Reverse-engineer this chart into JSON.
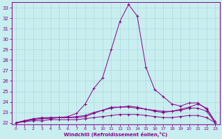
{
  "xlabel": "Windchill (Refroidissement éolien,°C)",
  "background_color": "#c8eef0",
  "grid_color": "#b0d8dc",
  "line_color": "#880088",
  "x_values": [
    0,
    1,
    2,
    3,
    4,
    5,
    6,
    7,
    8,
    9,
    10,
    11,
    12,
    13,
    14,
    15,
    16,
    17,
    18,
    19,
    20,
    21,
    22,
    23
  ],
  "lines": [
    [
      22.0,
      22.1,
      22.2,
      22.2,
      22.3,
      22.3,
      22.3,
      22.3,
      22.4,
      22.5,
      22.6,
      22.7,
      22.8,
      22.8,
      22.8,
      22.7,
      22.6,
      22.5,
      22.5,
      22.6,
      22.7,
      22.7,
      22.5,
      22.0
    ],
    [
      22.0,
      22.2,
      22.3,
      22.4,
      22.4,
      22.5,
      22.5,
      22.5,
      22.6,
      22.9,
      23.2,
      23.5,
      23.5,
      23.5,
      23.4,
      23.3,
      23.2,
      23.1,
      23.1,
      23.2,
      23.4,
      23.4,
      23.1,
      22.0
    ],
    [
      22.0,
      22.2,
      22.4,
      22.5,
      22.5,
      22.5,
      22.6,
      22.9,
      23.8,
      25.3,
      26.3,
      29.0,
      31.7,
      33.3,
      32.2,
      27.3,
      25.2,
      24.5,
      23.8,
      23.6,
      23.9,
      23.9,
      23.3,
      22.1
    ],
    [
      22.0,
      22.2,
      22.3,
      22.4,
      22.5,
      22.5,
      22.5,
      22.6,
      22.7,
      23.0,
      23.2,
      23.4,
      23.5,
      23.6,
      23.5,
      23.3,
      23.1,
      23.0,
      23.1,
      23.3,
      23.5,
      23.8,
      23.4,
      22.1
    ]
  ],
  "ylim": [
    21.85,
    33.5
  ],
  "yticks": [
    22,
    23,
    24,
    25,
    26,
    27,
    28,
    29,
    30,
    31,
    32,
    33
  ],
  "xlim": [
    -0.5,
    23.5
  ],
  "xticks": [
    0,
    1,
    2,
    3,
    4,
    5,
    6,
    7,
    8,
    9,
    10,
    11,
    12,
    13,
    14,
    15,
    16,
    17,
    18,
    19,
    20,
    21,
    22,
    23
  ]
}
